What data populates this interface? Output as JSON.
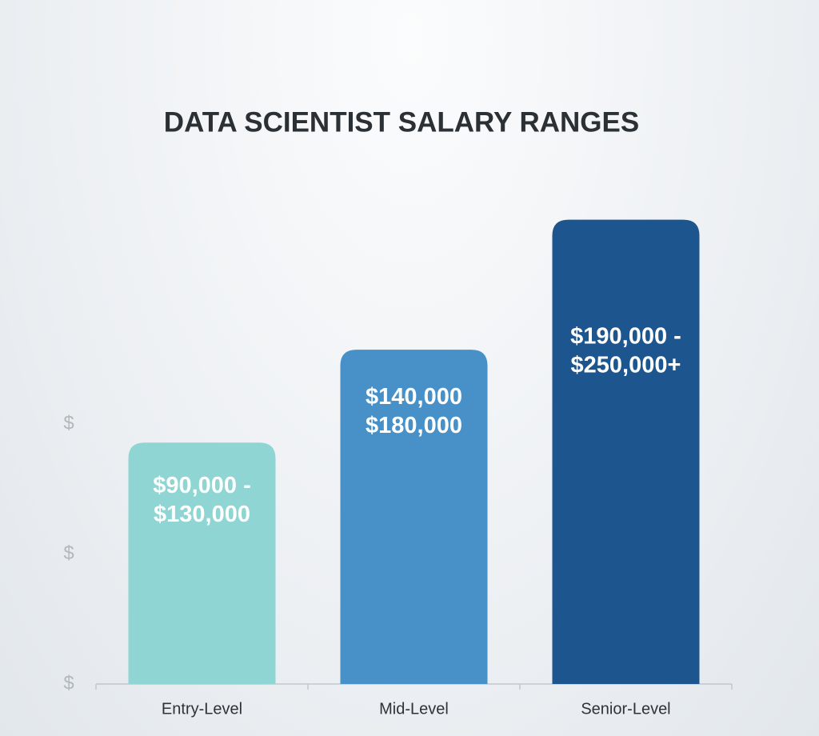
{
  "chart_data": {
    "type": "bar",
    "title": "DATA SCIENTIST SALARY RANGES",
    "categories": [
      "Entry-Level",
      "Mid-Level",
      "Senior-Level"
    ],
    "values": [
      130000,
      180000,
      250000
    ],
    "value_labels": [
      [
        "$90,000 -",
        "$130,000"
      ],
      [
        "$140,000",
        "$180,000"
      ],
      [
        "$190,000 -",
        "$250,000+"
      ]
    ],
    "colors": [
      "#8ed5d3",
      "#4891c8",
      "#1d558f"
    ],
    "ylim": [
      0,
      280000
    ],
    "yticks": [
      {
        "value": 0,
        "label": "$"
      },
      {
        "value": 70000,
        "label": "$"
      },
      {
        "value": 140000,
        "label": "$"
      }
    ],
    "grid": false
  }
}
